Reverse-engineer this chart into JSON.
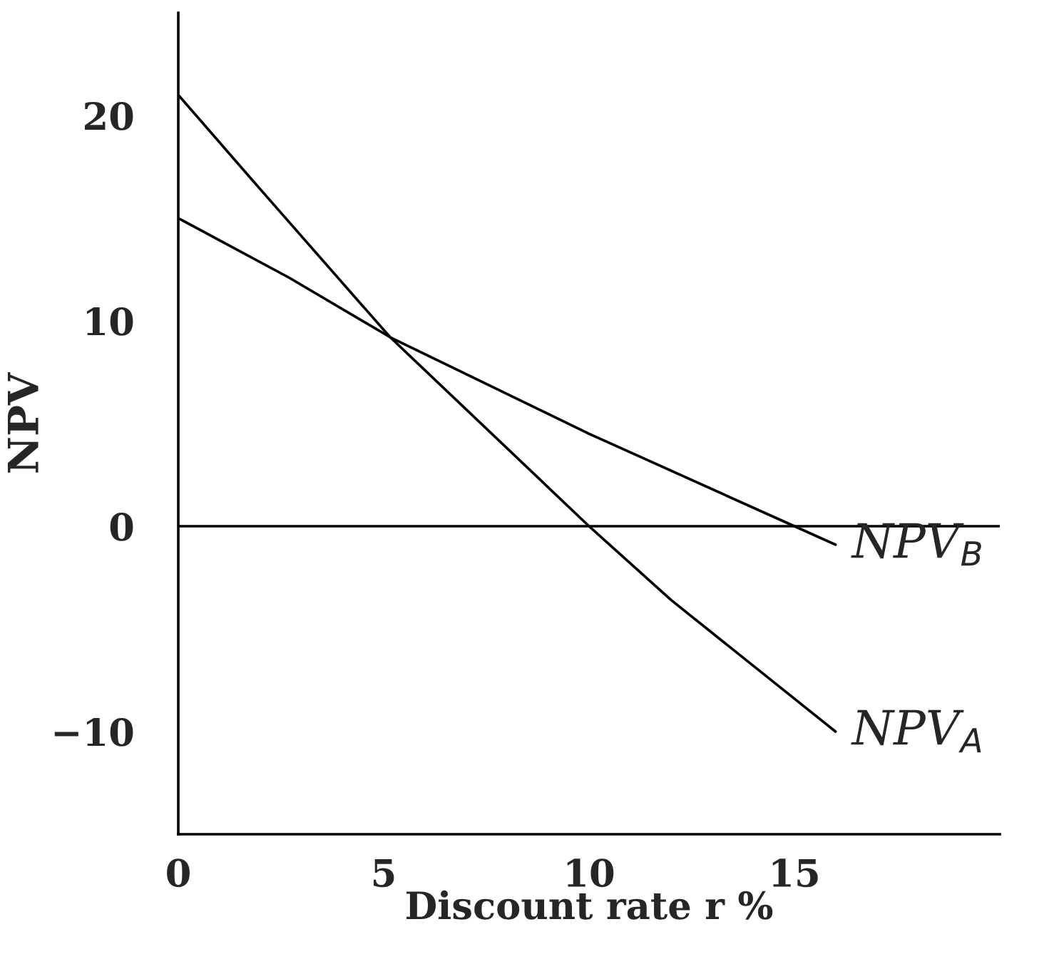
{
  "chart_data": {
    "type": "line",
    "xlabel": "Discount rate r %",
    "ylabel": "NPV",
    "xlim": [
      0,
      20
    ],
    "xticks": [
      0,
      5,
      10,
      15
    ],
    "ylim": [
      -15,
      25
    ],
    "yticks": [
      {
        "value": -10,
        "label": "−10"
      },
      0,
      10,
      20
    ],
    "grid": false,
    "legend": false,
    "marker": "none",
    "line_style": "solid",
    "series": [
      {
        "name": "NPV$_{A}$",
        "color": "#000000",
        "x": [
          0,
          2,
          5.16,
          10,
          12,
          16
        ],
        "values": [
          21,
          16.4,
          9.2,
          0,
          -3.6,
          -10
        ]
      },
      {
        "name": "NPV$_{B}$",
        "color": "#000000",
        "x": [
          0,
          2.7,
          5.16,
          10,
          15,
          16
        ],
        "values": [
          15,
          12.1,
          9.2,
          4.5,
          0,
          -0.9
        ]
      }
    ],
    "ref_lines": [
      {
        "axis": "y",
        "value": 0,
        "color": "#000000",
        "line_style": "solid"
      }
    ]
  }
}
